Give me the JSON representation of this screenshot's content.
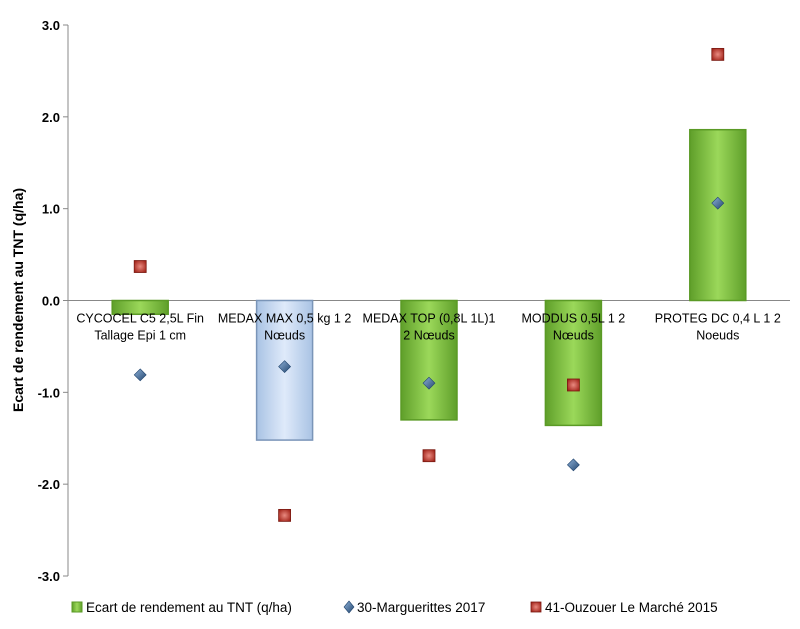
{
  "chart_data": {
    "type": "bar",
    "ylabel": "Ecart de rendement au TNT (q/ha)",
    "ylim": [
      -3.0,
      3.0
    ],
    "yticks": [
      "3.0",
      "2.0",
      "1.0",
      "0.0",
      "-1.0",
      "-2.0",
      "-3.0"
    ],
    "grid": false,
    "legend_position": "bottom",
    "categories": [
      [
        "CYCOCEL C5 2,5L Fin",
        "Tallage Epi 1 cm"
      ],
      [
        "MEDAX MAX 0,5 kg 1 2",
        "Nœuds"
      ],
      [
        "MEDAX TOP (0,8L  1L)1",
        "2 Nœuds"
      ],
      [
        "MODDUS 0,5L 1 2",
        "Nœuds"
      ],
      [
        "PROTEG DC 0,4 L 1 2",
        "Noeuds"
      ]
    ],
    "series": [
      {
        "name": "Ecart de rendement au TNT (q/ha)",
        "kind": "bar",
        "values": [
          -0.15,
          -1.52,
          -1.3,
          -1.36,
          1.86
        ],
        "colors": [
          "#7ec540",
          "#c9ddf5",
          "#7ec540",
          "#7ec540",
          "#7ec540"
        ],
        "border_colors": [
          "#5a9a25",
          "#7a95b8",
          "#5a9a25",
          "#5a9a25",
          "#5a9a25"
        ]
      },
      {
        "name": "30-Margueritte s 2017",
        "kind": "marker-diamond",
        "values": [
          -0.81,
          -0.72,
          -0.9,
          -1.79,
          1.06
        ],
        "color": "#3a6494"
      },
      {
        "name": "41-Ouzouer Le Marché 2015",
        "kind": "marker-square",
        "values": [
          0.37,
          -2.34,
          -1.69,
          -0.92,
          2.68
        ],
        "color": "#c0392b"
      }
    ]
  },
  "legend": {
    "items": [
      "Ecart de rendement au TNT (q/ha)",
      "30-Marguerittes 2017",
      "41-Ouzouer Le Marché 2015"
    ]
  }
}
